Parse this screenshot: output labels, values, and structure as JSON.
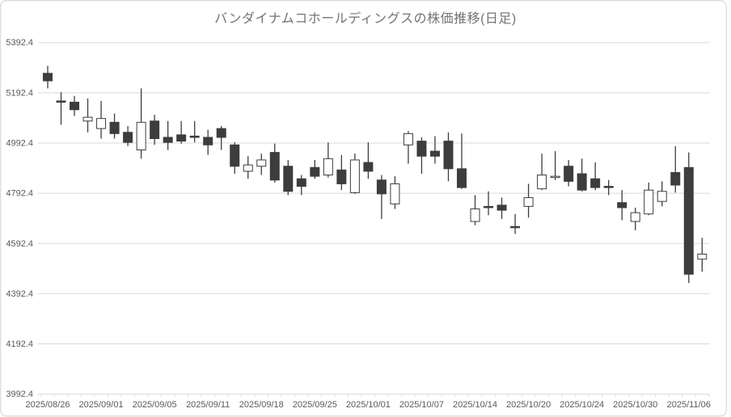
{
  "chart_data": {
    "type": "candlestick",
    "title": "バンダイナムコホールディングスの株価推移(日足)",
    "ylabel": "",
    "xlabel": "",
    "y_range": [
      3992.4,
      5392.4
    ],
    "y_tick_labels": [
      "5392.4",
      "5192.4",
      "4992.4",
      "4792.4",
      "4592.4",
      "4392.4",
      "4192.4",
      "3992.4"
    ],
    "y_tick_values": [
      5392.4,
      5192.4,
      4992.4,
      4792.4,
      4592.4,
      4392.4,
      4192.4,
      3992.4
    ],
    "x_tick_labels": [
      "2025/08/26",
      "2025/09/01",
      "2025/09/05",
      "2025/09/11",
      "2025/09/18",
      "2025/09/25",
      "2025/10/01",
      "2025/10/07",
      "2025/10/14",
      "2025/10/20",
      "2025/10/24",
      "2025/10/30",
      "2025/11/06"
    ],
    "x_tick_label_indices": [
      0,
      4,
      8,
      12,
      16,
      20,
      24,
      28,
      32,
      36,
      40,
      44,
      48
    ],
    "grid": "horizontal",
    "legend": "none",
    "dates": [
      "2025/08/26",
      "2025/08/27",
      "2025/08/28",
      "2025/08/29",
      "2025/09/01",
      "2025/09/02",
      "2025/09/03",
      "2025/09/04",
      "2025/09/05",
      "2025/09/08",
      "2025/09/09",
      "2025/09/10",
      "2025/09/11",
      "2025/09/12",
      "2025/09/16",
      "2025/09/17",
      "2025/09/18",
      "2025/09/19",
      "2025/09/22",
      "2025/09/24",
      "2025/09/25",
      "2025/09/26",
      "2025/09/29",
      "2025/09/30",
      "2025/10/01",
      "2025/10/02",
      "2025/10/03",
      "2025/10/06",
      "2025/10/07",
      "2025/10/08",
      "2025/10/09",
      "2025/10/10",
      "2025/10/14",
      "2025/10/15",
      "2025/10/16",
      "2025/10/17",
      "2025/10/20",
      "2025/10/21",
      "2025/10/22",
      "2025/10/23",
      "2025/10/24",
      "2025/10/27",
      "2025/10/28",
      "2025/10/29",
      "2025/10/30",
      "2025/10/31",
      "2025/11/04",
      "2025/11/05",
      "2025/11/06",
      "2025/11/07"
    ],
    "ohlc": [
      [
        5270,
        5300,
        5210,
        5240
      ],
      [
        5160,
        5195,
        5065,
        5155
      ],
      [
        5155,
        5180,
        5100,
        5125
      ],
      [
        5080,
        5170,
        5035,
        5095
      ],
      [
        5050,
        5160,
        5010,
        5090
      ],
      [
        5075,
        5110,
        5010,
        5030
      ],
      [
        5035,
        5060,
        4980,
        4995
      ],
      [
        4965,
        5210,
        4930,
        5075
      ],
      [
        5080,
        5105,
        4985,
        5010
      ],
      [
        5015,
        5080,
        4965,
        4995
      ],
      [
        5025,
        5080,
        4990,
        5000
      ],
      [
        5020,
        5080,
        4995,
        5015
      ],
      [
        5015,
        5045,
        4945,
        4985
      ],
      [
        5050,
        5060,
        4965,
        5015
      ],
      [
        4985,
        4995,
        4870,
        4900
      ],
      [
        4880,
        4940,
        4850,
        4905
      ],
      [
        4900,
        4950,
        4865,
        4925
      ],
      [
        4955,
        4990,
        4835,
        4845
      ],
      [
        4900,
        4925,
        4785,
        4800
      ],
      [
        4850,
        4865,
        4785,
        4820
      ],
      [
        4895,
        4925,
        4850,
        4860
      ],
      [
        4865,
        4995,
        4855,
        4930
      ],
      [
        4885,
        4945,
        4805,
        4830
      ],
      [
        4795,
        4950,
        4790,
        4925
      ],
      [
        4915,
        4995,
        4850,
        4880
      ],
      [
        4845,
        4865,
        4690,
        4790
      ],
      [
        4750,
        4860,
        4730,
        4830
      ],
      [
        4985,
        5040,
        4910,
        5030
      ],
      [
        5000,
        5015,
        4870,
        4940
      ],
      [
        4960,
        5020,
        4910,
        4940
      ],
      [
        5000,
        5035,
        4840,
        4890
      ],
      [
        4890,
        5030,
        4810,
        4815
      ],
      [
        4680,
        4785,
        4665,
        4730
      ],
      [
        4740,
        4800,
        4705,
        4735
      ],
      [
        4745,
        4775,
        4690,
        4725
      ],
      [
        4660,
        4710,
        4630,
        4655
      ],
      [
        4740,
        4830,
        4695,
        4775
      ],
      [
        4810,
        4950,
        4805,
        4865
      ],
      [
        4855,
        4960,
        4845,
        4860
      ],
      [
        4900,
        4925,
        4820,
        4840
      ],
      [
        4870,
        4930,
        4800,
        4805
      ],
      [
        4850,
        4915,
        4805,
        4815
      ],
      [
        4820,
        4845,
        4785,
        4815
      ],
      [
        4755,
        4805,
        4685,
        4735
      ],
      [
        4680,
        4735,
        4645,
        4715
      ],
      [
        4710,
        4835,
        4705,
        4805
      ],
      [
        4760,
        4840,
        4740,
        4800
      ],
      [
        4875,
        4980,
        4795,
        4825
      ],
      [
        4895,
        4955,
        4435,
        4470
      ],
      [
        4530,
        4615,
        4480,
        4550
      ]
    ],
    "colors": {
      "up_fill": "#ffffff",
      "down_fill": "#3d3d3d",
      "stroke": "#3d3d3d",
      "grid": "#d9d9d9",
      "axis_line": "#d9d9d9",
      "border": "#d9d9d9",
      "axis_text": "#595959",
      "title_text": "#737373",
      "background": "#ffffff"
    }
  }
}
